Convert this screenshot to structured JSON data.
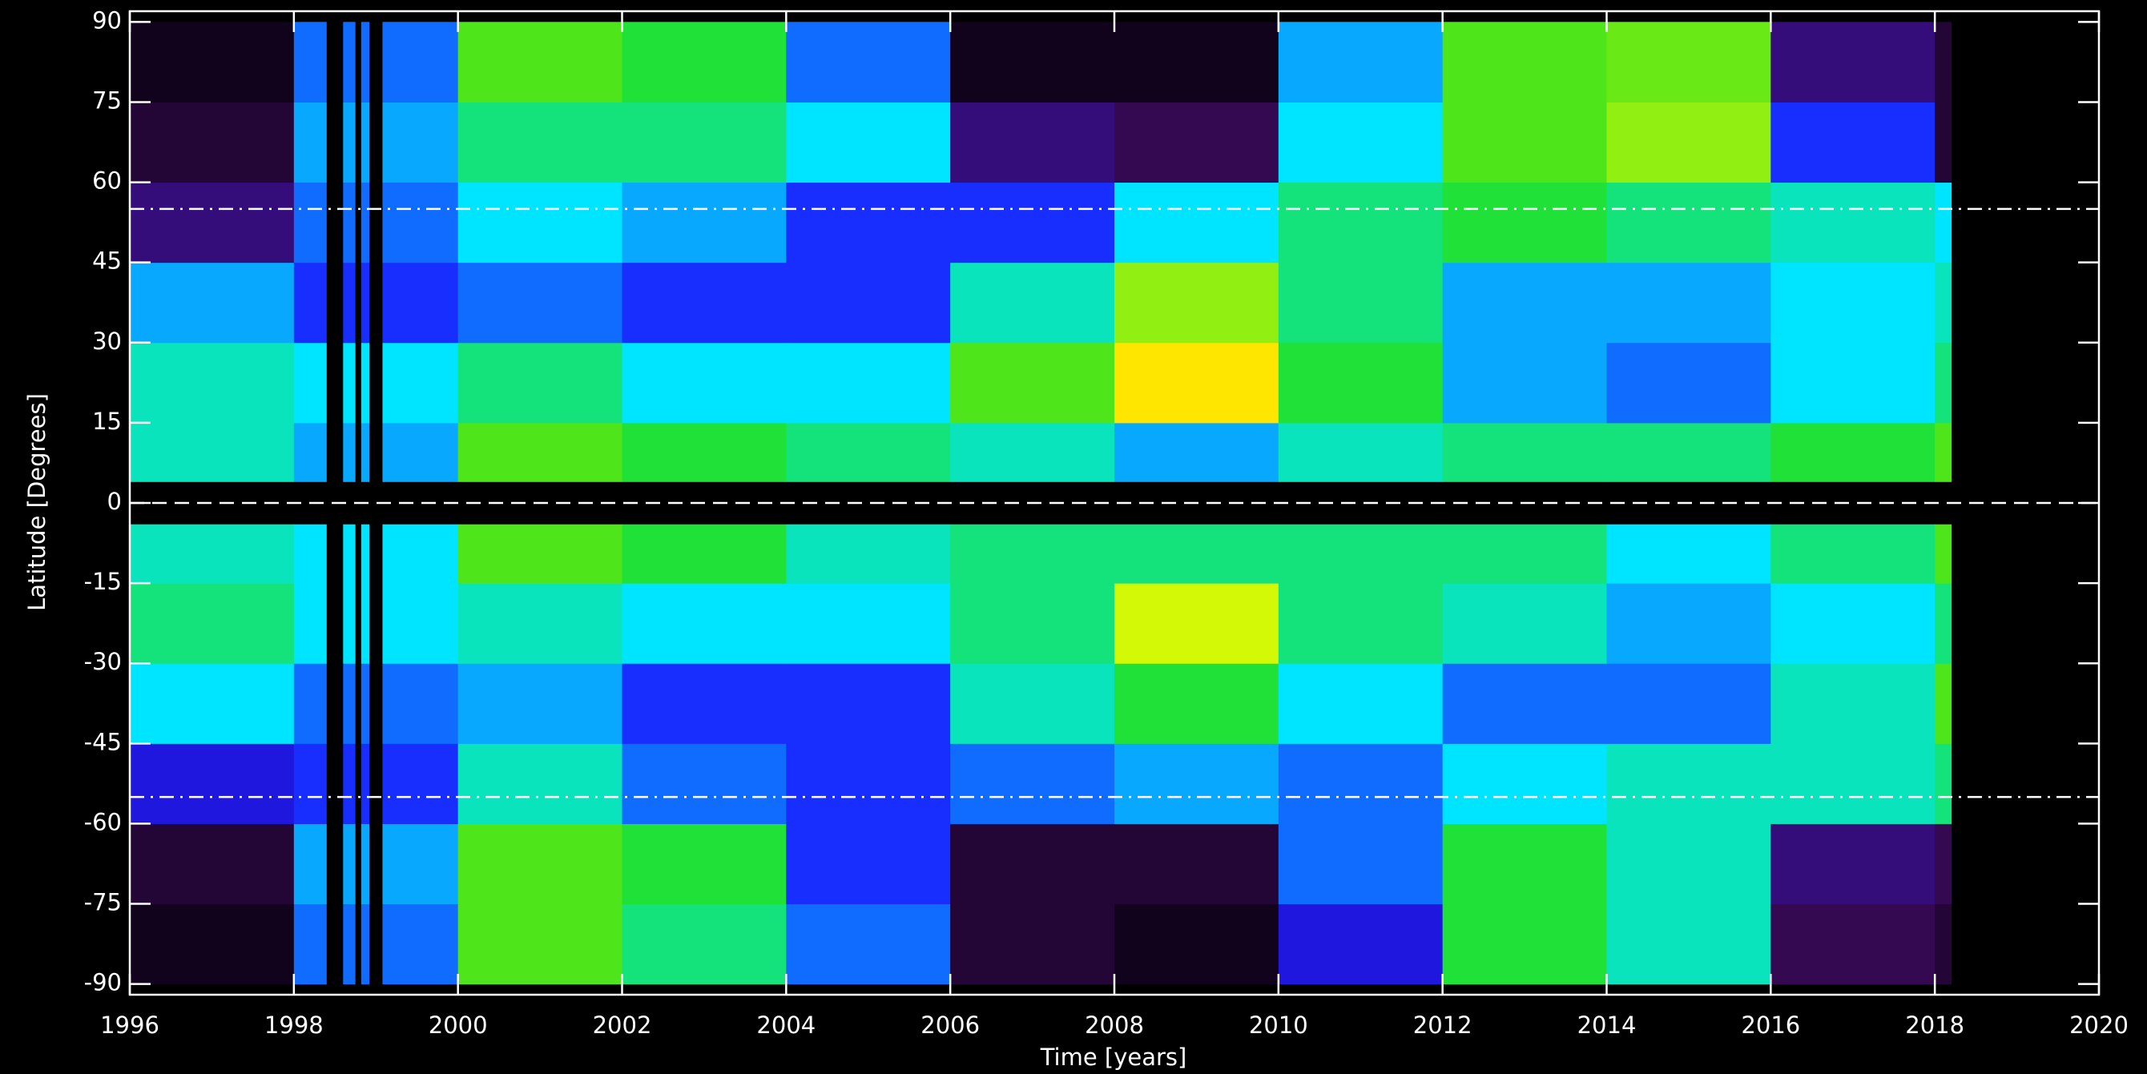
{
  "chart_data": {
    "type": "heatmap",
    "x_label": "Time [years]",
    "y_label": "Latitude [Degrees]",
    "xlim": [
      1996,
      2020
    ],
    "ylim": [
      -92,
      92
    ],
    "xticks": [
      1996,
      1998,
      2000,
      2002,
      2004,
      2006,
      2008,
      2010,
      2012,
      2014,
      2016,
      2018,
      2020
    ],
    "yticks": [
      -90,
      -75,
      -60,
      -45,
      -30,
      -15,
      0,
      15,
      30,
      45,
      60,
      75,
      90
    ],
    "xbins": [
      1996,
      1998,
      2000,
      2002,
      2004,
      2006,
      2008,
      2010,
      2012,
      2014,
      2016,
      2018,
      2018.2
    ],
    "ybins": [
      -90,
      -75,
      -60,
      -45,
      -30,
      -15,
      -4,
      4,
      15,
      30,
      45,
      60,
      75,
      90
    ],
    "zlim": [
      0,
      1
    ],
    "colormap": [
      "#000000",
      "#3a0a5a",
      "#1a1aff",
      "#00e5ff",
      "#22e022",
      "#ffff00",
      "#ff0000"
    ],
    "z": [
      [
        0.05,
        0.4,
        0.7,
        0.6,
        0.4,
        0.1,
        0.05,
        0.3,
        0.65,
        0.55,
        0.15,
        0.1
      ],
      [
        0.1,
        0.45,
        0.7,
        0.65,
        0.35,
        0.1,
        0.1,
        0.4,
        0.65,
        0.55,
        0.2,
        0.15
      ],
      [
        0.3,
        0.35,
        0.55,
        0.4,
        0.35,
        0.4,
        0.45,
        0.4,
        0.5,
        0.55,
        0.55,
        0.6
      ],
      [
        0.5,
        0.4,
        0.45,
        0.35,
        0.35,
        0.55,
        0.65,
        0.5,
        0.4,
        0.4,
        0.55,
        0.7
      ],
      [
        0.6,
        0.5,
        0.55,
        0.5,
        0.5,
        0.6,
        0.8,
        0.6,
        0.55,
        0.45,
        0.5,
        0.6
      ],
      [
        0.55,
        0.5,
        0.7,
        0.65,
        0.55,
        0.6,
        0.6,
        0.6,
        0.6,
        0.5,
        0.6,
        0.7
      ],
      [
        null,
        null,
        null,
        null,
        null,
        null,
        null,
        null,
        null,
        null,
        null,
        null
      ],
      [
        0.55,
        0.45,
        0.7,
        0.65,
        0.6,
        0.55,
        0.45,
        0.55,
        0.6,
        0.6,
        0.65,
        0.7
      ],
      [
        0.55,
        0.5,
        0.6,
        0.5,
        0.5,
        0.7,
        0.85,
        0.65,
        0.45,
        0.4,
        0.5,
        0.6
      ],
      [
        0.45,
        0.35,
        0.4,
        0.35,
        0.35,
        0.55,
        0.75,
        0.6,
        0.45,
        0.45,
        0.5,
        0.55
      ],
      [
        0.2,
        0.4,
        0.5,
        0.45,
        0.35,
        0.35,
        0.5,
        0.6,
        0.65,
        0.6,
        0.55,
        0.5
      ],
      [
        0.1,
        0.45,
        0.6,
        0.6,
        0.5,
        0.2,
        0.15,
        0.5,
        0.7,
        0.75,
        0.35,
        0.1
      ],
      [
        0.05,
        0.4,
        0.7,
        0.65,
        0.4,
        0.05,
        0.05,
        0.45,
        0.7,
        0.72,
        0.2,
        0.1
      ]
    ],
    "data_gaps": [
      [
        1998.4,
        1998.6
      ],
      [
        1998.75,
        1998.82
      ],
      [
        1998.92,
        1999.08
      ]
    ],
    "hlines": [
      {
        "value": 0,
        "dash": "dashed",
        "color": "#ffffff"
      },
      {
        "value": 55,
        "dash": "dashdot",
        "color": "#ffffff"
      },
      {
        "value": -55,
        "dash": "dashdot",
        "color": "#ffffff"
      }
    ]
  }
}
